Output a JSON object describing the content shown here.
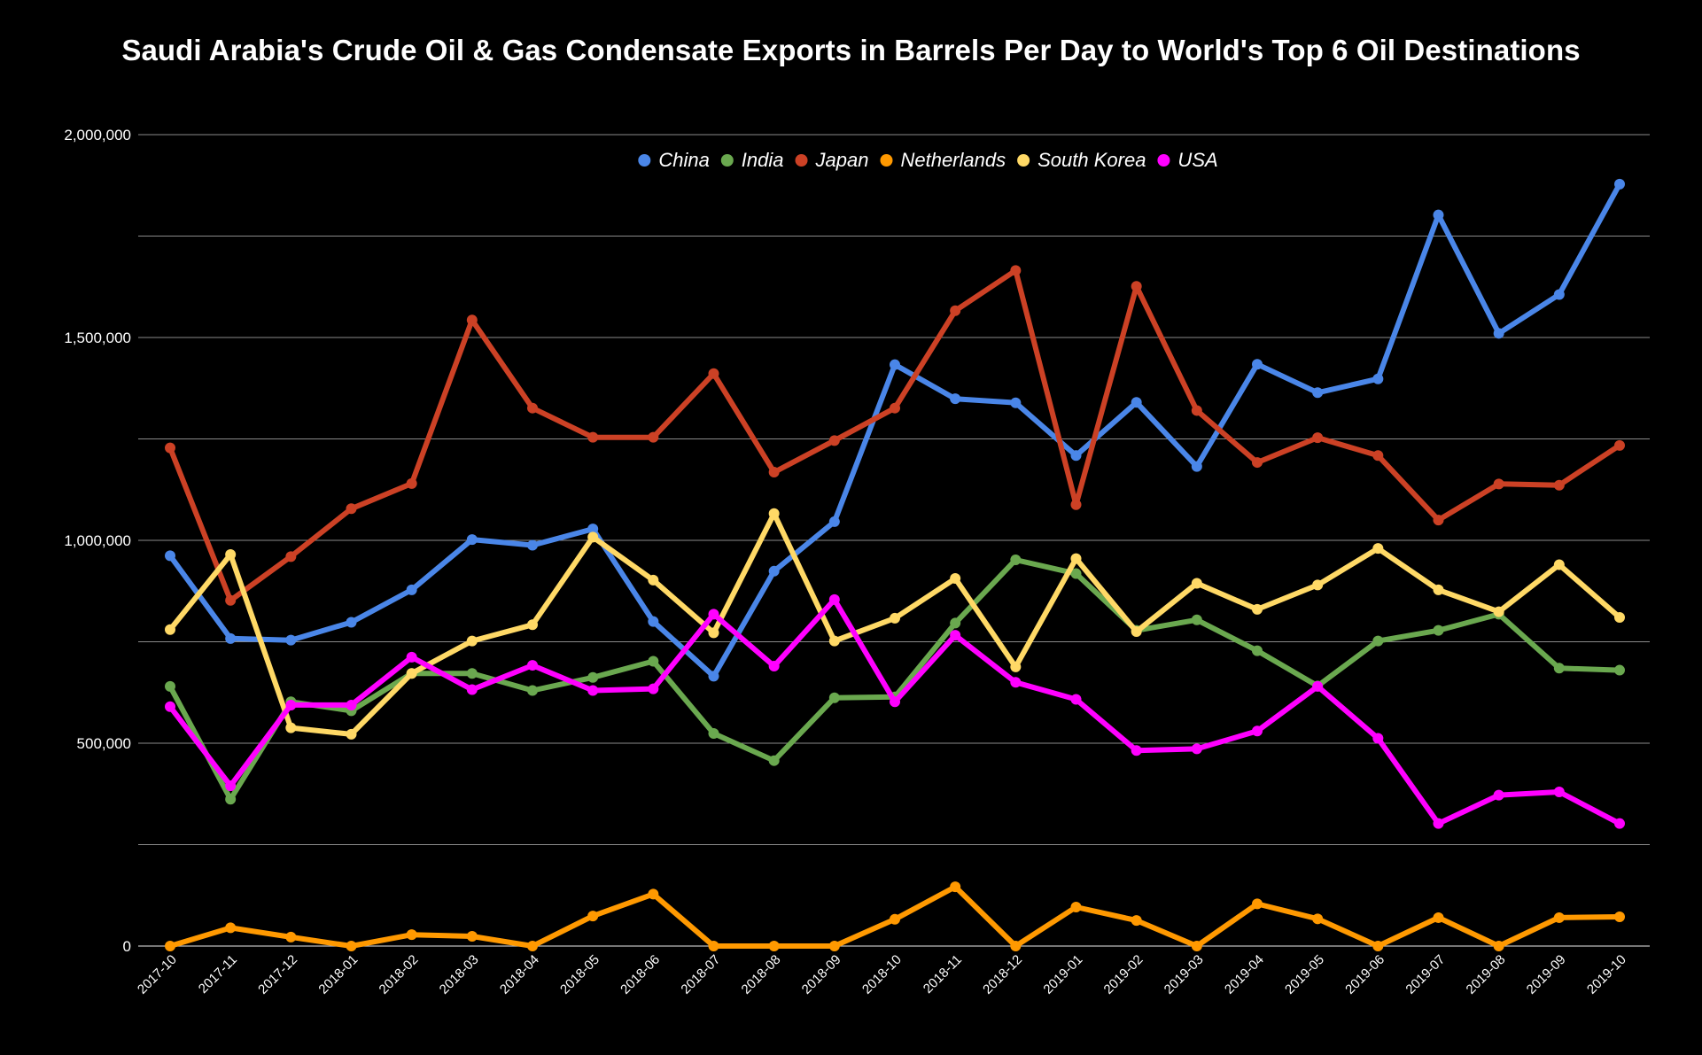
{
  "chart_data": {
    "type": "line",
    "title": "Saudi Arabia's Crude Oil & Gas Condensate Exports in Barrels Per Day to World's Top 6 Oil Destinations",
    "xlabel": "",
    "ylabel": "",
    "ylim": [
      0,
      2000000
    ],
    "y_ticks": [
      "0",
      "500,000",
      "1,000,000",
      "1,500,000",
      "2,000,000"
    ],
    "grid": true,
    "legend_position": "top-center",
    "categories": [
      "2017-10",
      "2017-11",
      "2017-12",
      "2018-01",
      "2018-02",
      "2018-03",
      "2018-04",
      "2018-05",
      "2018-06",
      "2018-07",
      "2018-08",
      "2018-09",
      "2018-10",
      "2018-11",
      "2018-12",
      "2019-01",
      "2019-02",
      "2019-03",
      "2019-04",
      "2019-05",
      "2019-06",
      "2019-07",
      "2019-08",
      "2019-09",
      "2019-10"
    ],
    "series": [
      {
        "name": "China",
        "color": "#4A86E8",
        "values": [
          962000,
          758000,
          754000,
          798000,
          878000,
          1002000,
          988000,
          1028000,
          800000,
          665000,
          924000,
          1046000,
          1433000,
          1349000,
          1339000,
          1209000,
          1340000,
          1182000,
          1434000,
          1364000,
          1398000,
          1802000,
          1510000,
          1606000,
          1878000
        ]
      },
      {
        "name": "India",
        "color": "#6AA84F",
        "values": [
          640000,
          362000,
          602000,
          580000,
          672000,
          672000,
          630000,
          662000,
          702000,
          524000,
          457000,
          612000,
          614000,
          796000,
          952000,
          918000,
          778000,
          804000,
          728000,
          641000,
          752000,
          778000,
          818000,
          685000,
          680000
        ]
      },
      {
        "name": "Japan",
        "color": "#CC4125",
        "values": [
          1228000,
          852000,
          960000,
          1078000,
          1140000,
          1543000,
          1326000,
          1254000,
          1254000,
          1411000,
          1168000,
          1246000,
          1326000,
          1566000,
          1665000,
          1088000,
          1626000,
          1320000,
          1192000,
          1253000,
          1209000,
          1050000,
          1139000,
          1136000,
          1234000
        ]
      },
      {
        "name": "Netherlands",
        "color": "#FF9900",
        "values": [
          0,
          45000,
          22000,
          0,
          28000,
          24000,
          0,
          74000,
          128000,
          0,
          0,
          0,
          66000,
          146000,
          0,
          96000,
          63000,
          0,
          104000,
          67000,
          0,
          70000,
          0,
          70000,
          72000
        ]
      },
      {
        "name": "South Korea",
        "color": "#FFD966",
        "values": [
          780000,
          965000,
          538000,
          522000,
          672000,
          752000,
          792000,
          1008000,
          902000,
          772000,
          1066000,
          752000,
          808000,
          906000,
          688000,
          955000,
          775000,
          894000,
          830000,
          890000,
          980000,
          878000,
          824000,
          940000,
          810000
        ]
      },
      {
        "name": "USA",
        "color": "#FF00FF",
        "values": [
          590000,
          395000,
          594000,
          594000,
          712000,
          632000,
          692000,
          630000,
          634000,
          818000,
          690000,
          854000,
          602000,
          766000,
          650000,
          608000,
          482000,
          486000,
          530000,
          640000,
          512000,
          302000,
          372000,
          380000,
          302000
        ]
      }
    ]
  }
}
